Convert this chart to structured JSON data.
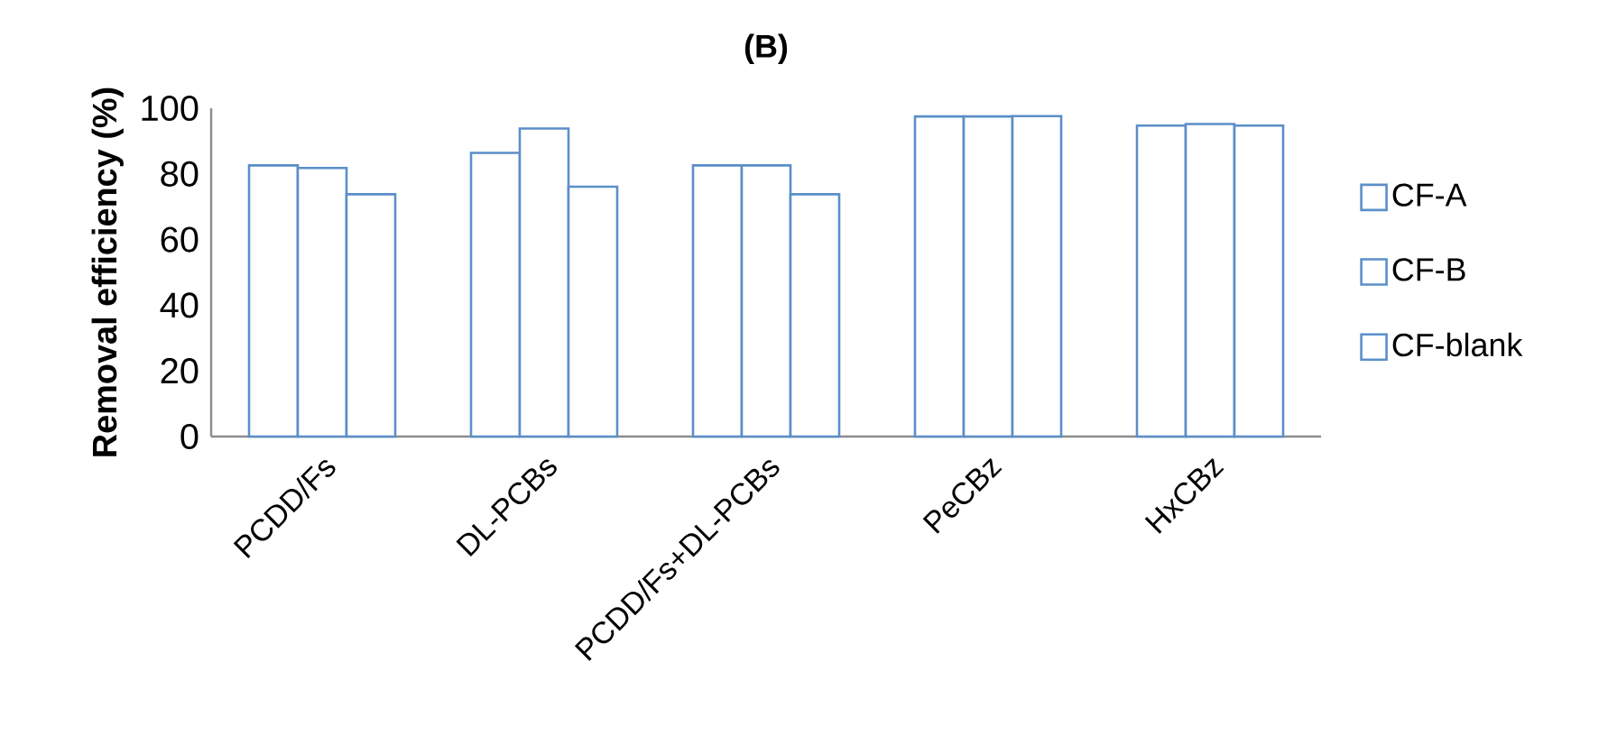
{
  "chart_data": {
    "type": "bar",
    "title": "(B)",
    "ylabel": "Removal efficiency (%)",
    "categories": [
      "PCDD/Fs",
      "DL-PCBs",
      "PCDD/Fs+DL-PCBs",
      "PeCBz",
      "HxCBz"
    ],
    "series": [
      {
        "name": "CF-A",
        "color": "#5b8fc9",
        "values": [
          82.6,
          86.4,
          82.6,
          97.5,
          94.7
        ]
      },
      {
        "name": "CF-B",
        "color": "#5b8fc9",
        "values": [
          81.8,
          93.8,
          82.6,
          97.5,
          95.2
        ]
      },
      {
        "name": "CF-blank",
        "color": "#5b8fc9",
        "values": [
          73.8,
          76.1,
          73.8,
          97.6,
          94.7
        ]
      }
    ],
    "ylim": [
      0,
      100
    ],
    "yticks": [
      0,
      20,
      40,
      60,
      80,
      100
    ],
    "grid": false,
    "legend": "right"
  }
}
